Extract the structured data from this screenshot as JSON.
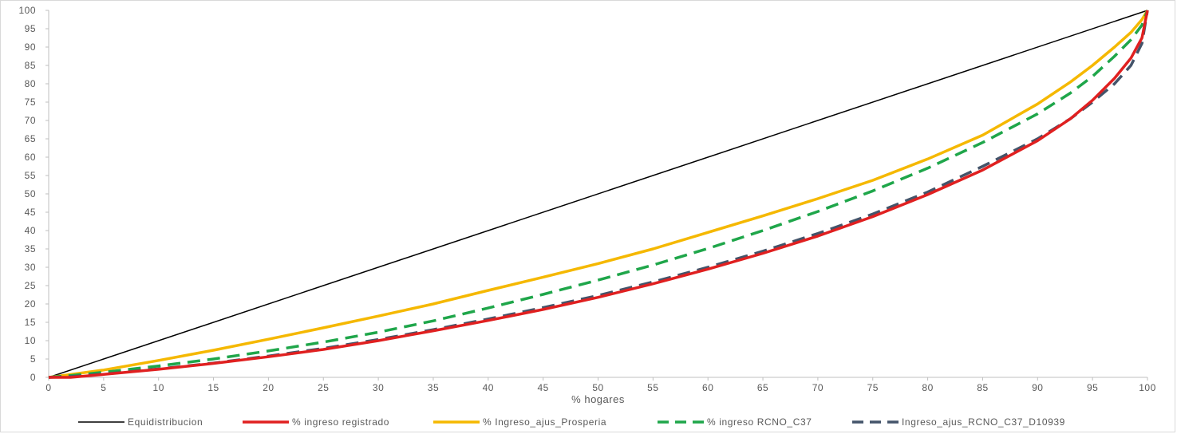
{
  "chart_data": {
    "type": "line",
    "title": "",
    "xlabel": "% hogares",
    "ylabel": "",
    "xlim": [
      0,
      100
    ],
    "ylim": [
      0,
      100
    ],
    "x_ticks": [
      0,
      5,
      10,
      15,
      20,
      25,
      30,
      35,
      40,
      45,
      50,
      55,
      60,
      65,
      70,
      75,
      80,
      85,
      90,
      95,
      100
    ],
    "y_ticks": [
      0,
      5,
      10,
      15,
      20,
      25,
      30,
      35,
      40,
      45,
      50,
      55,
      60,
      65,
      70,
      75,
      80,
      85,
      90,
      95,
      100
    ],
    "grid": false,
    "legend_position": "bottom",
    "series": [
      {
        "name": "Equidistribucion",
        "color": "#000000",
        "style": "solid",
        "x": [
          0,
          100
        ],
        "y": [
          0,
          100
        ]
      },
      {
        "name": "% ingreso registrado",
        "color": "#e02020",
        "style": "solid",
        "x": [
          0,
          2,
          5,
          10,
          15,
          20,
          25,
          30,
          35,
          40,
          45,
          50,
          55,
          60,
          65,
          70,
          75,
          80,
          85,
          90,
          93,
          95,
          97,
          98.5,
          99.5,
          100
        ],
        "y": [
          0,
          0,
          0.8,
          2.2,
          3.8,
          5.6,
          7.6,
          10,
          12.7,
          15.5,
          18.5,
          21.8,
          25.5,
          29.5,
          33.8,
          38.5,
          43.8,
          49.8,
          56.5,
          64.5,
          70.5,
          75.5,
          81.5,
          87,
          92.5,
          100
        ]
      },
      {
        "name": "% Ingreso_ajus_Prosperia",
        "color": "#f5b800",
        "style": "solid",
        "x": [
          0,
          1,
          5,
          10,
          15,
          20,
          25,
          30,
          35,
          40,
          45,
          50,
          55,
          60,
          65,
          70,
          75,
          80,
          85,
          90,
          93,
          95,
          97,
          98.5,
          99.5,
          100
        ],
        "y": [
          0,
          0.4,
          2,
          4.6,
          7.4,
          10.4,
          13.5,
          16.7,
          20,
          23.7,
          27.3,
          31,
          35,
          39.5,
          44,
          48.7,
          53.7,
          59.5,
          66,
          74.5,
          80.5,
          85,
          90,
          94,
          97.5,
          100
        ]
      },
      {
        "name": "% ingreso RCNO_C37",
        "color": "#1fa64a",
        "style": "dashed",
        "x": [
          0,
          2,
          5,
          10,
          15,
          20,
          25,
          30,
          35,
          40,
          45,
          50,
          55,
          60,
          65,
          70,
          75,
          80,
          85,
          90,
          93,
          95,
          97,
          98.5,
          99.5,
          100
        ],
        "y": [
          0,
          0.5,
          1.4,
          3.1,
          5,
          7.2,
          9.6,
          12.3,
          15.4,
          18.9,
          22.6,
          26.5,
          30.6,
          35.1,
          40,
          45.2,
          50.8,
          57,
          64,
          71.8,
          77.5,
          82,
          87.5,
          92,
          96,
          100
        ]
      },
      {
        "name": "Ingreso_ajus_RCNO_C37_D10939",
        "color": "#44546a",
        "style": "dashed",
        "x": [
          0,
          2,
          5,
          10,
          15,
          20,
          25,
          30,
          35,
          40,
          45,
          50,
          55,
          60,
          65,
          70,
          75,
          80,
          85,
          90,
          93,
          95,
          97,
          98.5,
          99.5,
          100
        ],
        "y": [
          0,
          0.2,
          0.9,
          2.3,
          3.9,
          5.8,
          7.9,
          10.3,
          13,
          15.9,
          19,
          22.3,
          26,
          30,
          34.4,
          39.2,
          44.5,
          50.5,
          57.5,
          65,
          70.5,
          75,
          80,
          85,
          91,
          100
        ]
      }
    ]
  }
}
